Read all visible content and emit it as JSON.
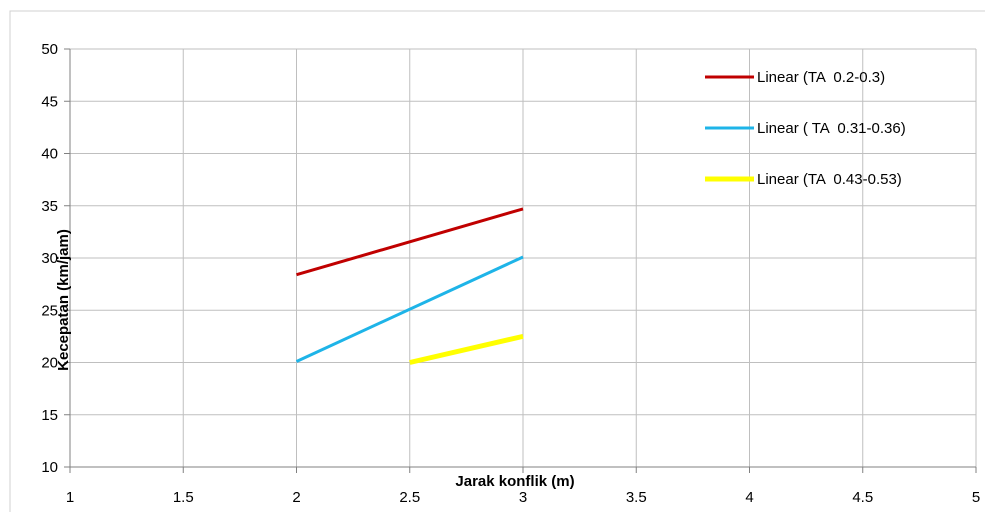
{
  "chart_data": {
    "type": "line",
    "title": "",
    "xlabel": "Jarak konflik (m)",
    "ylabel": "Kecepatan (km/jam)",
    "xlim": [
      1,
      5
    ],
    "ylim": [
      10,
      50
    ],
    "x_ticks": [
      "1",
      "1.5",
      "2",
      "2.5",
      "3",
      "3.5",
      "4",
      "4.5",
      "5"
    ],
    "y_ticks": [
      "10",
      "15",
      "20",
      "25",
      "30",
      "35",
      "40",
      "45",
      "50"
    ],
    "grid": true,
    "legend_position": "top-right",
    "series": [
      {
        "name": "Linear (TA  0.2-0.3)",
        "color": "#c00000",
        "x": [
          2,
          3
        ],
        "y": [
          28.4,
          34.7
        ]
      },
      {
        "name": "Linear ( TA  0.31-0.36)",
        "color": "#1eb4e8",
        "x": [
          2,
          3
        ],
        "y": [
          20.1,
          30.1
        ]
      },
      {
        "name": "Linear (TA  0.43-0.53)",
        "color": "#ffff00",
        "x": [
          2.5,
          3
        ],
        "y": [
          20.0,
          22.5
        ]
      }
    ]
  }
}
